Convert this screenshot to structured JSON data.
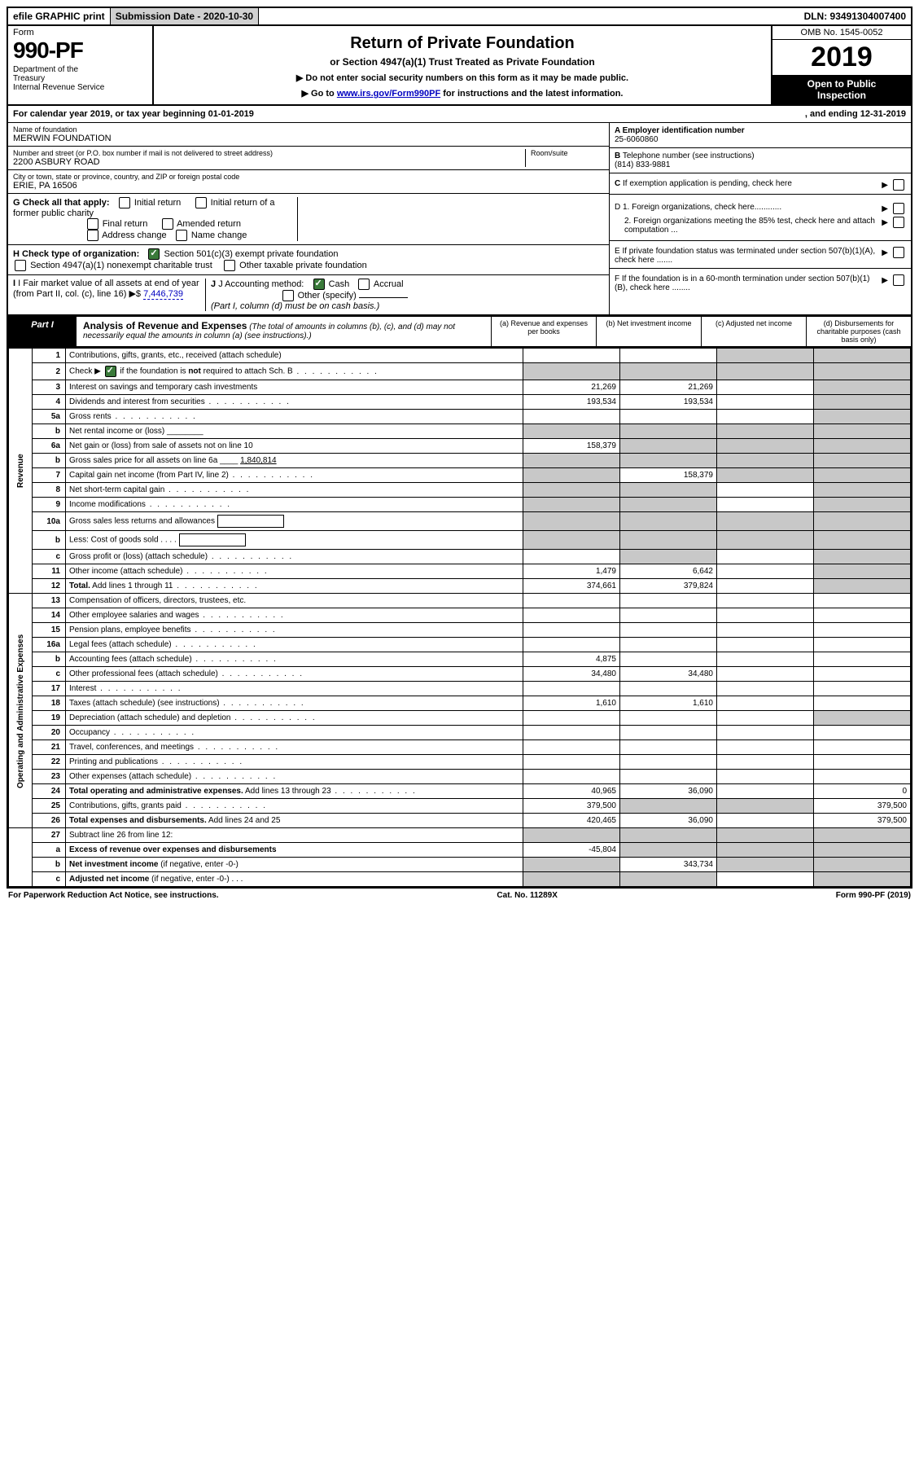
{
  "topbar": {
    "efile": "efile GRAPHIC print",
    "submission_label": "Submission Date - 2020-10-30",
    "dln": "DLN: 93491304007400"
  },
  "header": {
    "form_word": "Form",
    "form_number": "990-PF",
    "dept": "Department of the Treasury\nInternal Revenue Service",
    "title": "Return of Private Foundation",
    "subtitle": "or Section 4947(a)(1) Trust Treated as Private Foundation",
    "note1": "▶ Do not enter social security numbers on this form as it may be made public.",
    "note2_pre": "▶ Go to ",
    "note2_link": "www.irs.gov/Form990PF",
    "note2_post": " for instructions and the latest information.",
    "omb": "OMB No. 1545-0052",
    "year": "2019",
    "open": "Open to Public Inspection"
  },
  "calyear": {
    "left": "For calendar year 2019, or tax year beginning 01-01-2019",
    "right": ", and ending 12-31-2019"
  },
  "entity": {
    "name_label": "Name of foundation",
    "name": "MERWIN FOUNDATION",
    "addr_label": "Number and street (or P.O. box number if mail is not delivered to street address)",
    "room_label": "Room/suite",
    "addr": "2200 ASBURY ROAD",
    "city_label": "City or town, state or province, country, and ZIP or foreign postal code",
    "city": "ERIE, PA  16506"
  },
  "right_info": {
    "a_label": "A Employer identification number",
    "a_val": "25-6060860",
    "b_label": "B Telephone number (see instructions)",
    "b_val": "(814) 833-9881",
    "c_label": "C If exemption application is pending, check here",
    "d1": "D 1. Foreign organizations, check here............",
    "d2": "2. Foreign organizations meeting the 85% test, check here and attach computation ...",
    "e": "E  If private foundation status was terminated under section 507(b)(1)(A), check here .......",
    "f": "F  If the foundation is in a 60-month termination under section 507(b)(1)(B), check here ........"
  },
  "g": {
    "label": "G Check all that apply:",
    "opts": [
      "Initial return",
      "Initial return of a former public charity",
      "Final return",
      "Amended return",
      "Address change",
      "Name change"
    ]
  },
  "h": {
    "label": "H Check type of organization:",
    "opt1": "Section 501(c)(3) exempt private foundation",
    "opt2": "Section 4947(a)(1) nonexempt charitable trust",
    "opt3": "Other taxable private foundation"
  },
  "i": {
    "label": "I Fair market value of all assets at end of year (from Part II, col. (c), line 16)",
    "arrow": "▶$",
    "val": "7,446,739"
  },
  "j": {
    "label": "J Accounting method:",
    "cash": "Cash",
    "accrual": "Accrual",
    "other": "Other (specify)",
    "note": "(Part I, column (d) must be on cash basis.)"
  },
  "part1": {
    "tab": "Part I",
    "title": "Analysis of Revenue and Expenses",
    "title_note": "(The total of amounts in columns (b), (c), and (d) may not necessarily equal the amounts in column (a) (see instructions).)",
    "cols": {
      "a": "(a)   Revenue and expenses per books",
      "b": "(b)  Net investment income",
      "c": "(c)  Adjusted net income",
      "d": "(d)  Disbursements for charitable purposes (cash basis only)"
    }
  },
  "sections": {
    "revenue": "Revenue",
    "opex": "Operating and Administrative Expenses"
  },
  "rows": [
    {
      "n": "1",
      "d": "Contributions, gifts, grants, etc., received (attach schedule)",
      "a": "",
      "b": "",
      "c": "g",
      "dd": "g"
    },
    {
      "n": "2",
      "d": "Check ▶ [x] if the foundation is <b>not</b> required to attach Sch. B",
      "dots": true,
      "a": "g",
      "b": "g",
      "c": "g",
      "dd": "g"
    },
    {
      "n": "3",
      "d": "Interest on savings and temporary cash investments",
      "a": "21,269",
      "b": "21,269",
      "c": "",
      "dd": "g"
    },
    {
      "n": "4",
      "d": "Dividends and interest from securities",
      "dots": true,
      "a": "193,534",
      "b": "193,534",
      "c": "",
      "dd": "g"
    },
    {
      "n": "5a",
      "d": "Gross rents",
      "dots": true,
      "a": "",
      "b": "",
      "c": "",
      "dd": "g"
    },
    {
      "n": "b",
      "d": "Net rental income or (loss) ________",
      "a": "g",
      "b": "g",
      "c": "g",
      "dd": "g"
    },
    {
      "n": "6a",
      "d": "Net gain or (loss) from sale of assets not on line 10",
      "a": "158,379",
      "b": "g",
      "c": "g",
      "dd": "g"
    },
    {
      "n": "b",
      "d": "Gross sales price for all assets on line 6a ____ <u>1,840,814</u>",
      "a": "g",
      "b": "g",
      "c": "g",
      "dd": "g"
    },
    {
      "n": "7",
      "d": "Capital gain net income (from Part IV, line 2)",
      "dots": true,
      "a": "g",
      "b": "158,379",
      "c": "g",
      "dd": "g"
    },
    {
      "n": "8",
      "d": "Net short-term capital gain",
      "dots": true,
      "a": "g",
      "b": "g",
      "c": "",
      "dd": "g"
    },
    {
      "n": "9",
      "d": "Income modifications",
      "dots": true,
      "a": "g",
      "b": "g",
      "c": "",
      "dd": "g"
    },
    {
      "n": "10a",
      "d": "Gross sales less returns and allowances [   ]",
      "a": "g",
      "b": "g",
      "c": "g",
      "dd": "g"
    },
    {
      "n": "b",
      "d": "Less: Cost of goods sold   . . . .  [   ]",
      "a": "g",
      "b": "g",
      "c": "g",
      "dd": "g"
    },
    {
      "n": "c",
      "d": "Gross profit or (loss) (attach schedule)",
      "dots": true,
      "a": "",
      "b": "g",
      "c": "",
      "dd": "g"
    },
    {
      "n": "11",
      "d": "Other income (attach schedule)",
      "dots": true,
      "a": "1,479",
      "b": "6,642",
      "c": "",
      "dd": "g"
    },
    {
      "n": "12",
      "d": "<b>Total.</b> Add lines 1 through 11",
      "dots": true,
      "a": "374,661",
      "b": "379,824",
      "c": "",
      "dd": "g"
    }
  ],
  "oprows": [
    {
      "n": "13",
      "d": "Compensation of officers, directors, trustees, etc.",
      "a": "",
      "b": "",
      "c": "",
      "dd": ""
    },
    {
      "n": "14",
      "d": "Other employee salaries and wages",
      "dots": true,
      "a": "",
      "b": "",
      "c": "",
      "dd": ""
    },
    {
      "n": "15",
      "d": "Pension plans, employee benefits",
      "dots": true,
      "a": "",
      "b": "",
      "c": "",
      "dd": ""
    },
    {
      "n": "16a",
      "d": "Legal fees (attach schedule)",
      "dots": true,
      "a": "",
      "b": "",
      "c": "",
      "dd": ""
    },
    {
      "n": "b",
      "d": "Accounting fees (attach schedule)",
      "dots": true,
      "a": "4,875",
      "b": "",
      "c": "",
      "dd": ""
    },
    {
      "n": "c",
      "d": "Other professional fees (attach schedule)",
      "dots": true,
      "a": "34,480",
      "b": "34,480",
      "c": "",
      "dd": ""
    },
    {
      "n": "17",
      "d": "Interest",
      "dots": true,
      "a": "",
      "b": "",
      "c": "",
      "dd": ""
    },
    {
      "n": "18",
      "d": "Taxes (attach schedule) (see instructions)",
      "dots": true,
      "a": "1,610",
      "b": "1,610",
      "c": "",
      "dd": ""
    },
    {
      "n": "19",
      "d": "Depreciation (attach schedule) and depletion",
      "dots": true,
      "a": "",
      "b": "",
      "c": "",
      "dd": "g"
    },
    {
      "n": "20",
      "d": "Occupancy",
      "dots": true,
      "a": "",
      "b": "",
      "c": "",
      "dd": ""
    },
    {
      "n": "21",
      "d": "Travel, conferences, and meetings",
      "dots": true,
      "a": "",
      "b": "",
      "c": "",
      "dd": ""
    },
    {
      "n": "22",
      "d": "Printing and publications",
      "dots": true,
      "a": "",
      "b": "",
      "c": "",
      "dd": ""
    },
    {
      "n": "23",
      "d": "Other expenses (attach schedule)",
      "dots": true,
      "a": "",
      "b": "",
      "c": "",
      "dd": ""
    },
    {
      "n": "24",
      "d": "<b>Total operating and administrative expenses.</b> Add lines 13 through 23",
      "dots": true,
      "a": "40,965",
      "b": "36,090",
      "c": "",
      "dd": "0"
    },
    {
      "n": "25",
      "d": "Contributions, gifts, grants paid",
      "dots": true,
      "a": "379,500",
      "b": "g",
      "c": "g",
      "dd": "379,500"
    },
    {
      "n": "26",
      "d": "<b>Total expenses and disbursements.</b> Add lines 24 and 25",
      "a": "420,465",
      "b": "36,090",
      "c": "",
      "dd": "379,500"
    }
  ],
  "bottomrows": [
    {
      "n": "27",
      "d": "Subtract line 26 from line 12:",
      "a": "g",
      "b": "g",
      "c": "g",
      "dd": "g"
    },
    {
      "n": "a",
      "d": "<b>Excess of revenue over expenses and disbursements</b>",
      "a": "-45,804",
      "b": "g",
      "c": "g",
      "dd": "g"
    },
    {
      "n": "b",
      "d": "<b>Net investment income</b> (if negative, enter -0-)",
      "a": "g",
      "b": "343,734",
      "c": "g",
      "dd": "g"
    },
    {
      "n": "c",
      "d": "<b>Adjusted net income</b> (if negative, enter -0-)   . . .",
      "a": "g",
      "b": "g",
      "c": "",
      "dd": "g"
    }
  ],
  "footer": {
    "left": "For Paperwork Reduction Act Notice, see instructions.",
    "mid": "Cat. No. 11289X",
    "right": "Form 990-PF (2019)"
  }
}
